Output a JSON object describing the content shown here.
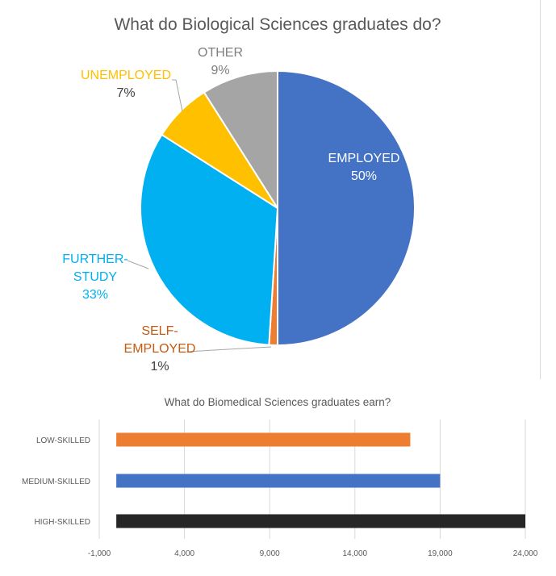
{
  "chart_data": [
    {
      "type": "pie",
      "title": "What do Biological Sciences graduates do?",
      "slices": [
        {
          "label_lines": [
            "EMPLOYED"
          ],
          "value": 50,
          "value_label": "50%",
          "color": "#4472c4",
          "label_color": "#ffffff"
        },
        {
          "label_lines": [
            "SELF-",
            "EMPLOYED"
          ],
          "value": 1,
          "value_label": "1%",
          "color": "#ed7d31",
          "label_color": "#c55a11"
        },
        {
          "label_lines": [
            "FURTHER-",
            "STUDY"
          ],
          "value": 33,
          "value_label": "33%",
          "color": "#00b0f0",
          "label_color": "#00b0f0"
        },
        {
          "label_lines": [
            "UNEMPLOYED"
          ],
          "value": 7,
          "value_label": "7%",
          "color": "#ffc000",
          "label_color": "#ffc000"
        },
        {
          "label_lines": [
            "OTHER"
          ],
          "value": 9,
          "value_label": "9%",
          "color": "#a5a5a5",
          "label_color": "#7f7f7f"
        }
      ]
    },
    {
      "type": "bar",
      "orientation": "horizontal",
      "title": "What do Biomedical Sciences graduates earn?",
      "categories": [
        "LOW-SKILLED",
        "MEDIUM-SKILLED",
        "HIGH-SKILLED"
      ],
      "values": [
        17250,
        19000,
        24000
      ],
      "colors": [
        "#ed7d31",
        "#4472c4",
        "#262626"
      ],
      "xlim": [
        -1000,
        24000
      ],
      "xticks": [
        -1000,
        4000,
        9000,
        14000,
        19000,
        24000
      ],
      "xtick_labels": [
        "-1,000",
        "4,000",
        "9,000",
        "14,000",
        "19,000",
        "24,000"
      ],
      "grid": true
    }
  ]
}
